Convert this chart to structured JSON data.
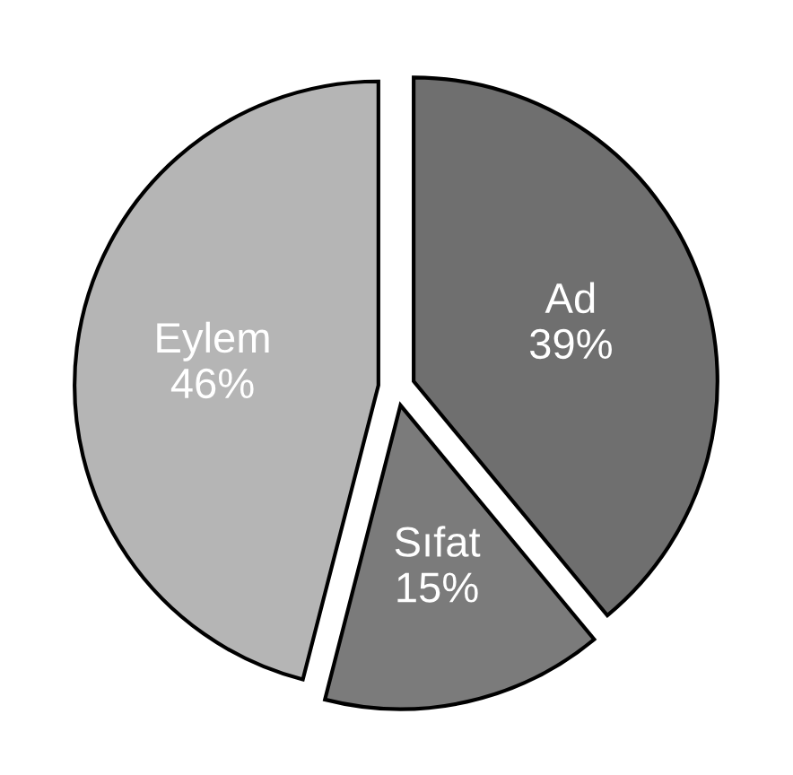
{
  "chart_data": {
    "type": "pie",
    "categories": [
      "Ad",
      "Sıfat",
      "Eylem"
    ],
    "values": [
      39,
      15,
      46
    ],
    "value_labels": [
      "39%",
      "15%",
      "46%"
    ],
    "colors": [
      "#6f6f6f",
      "#7b7b7b",
      "#b5b5b5"
    ]
  }
}
